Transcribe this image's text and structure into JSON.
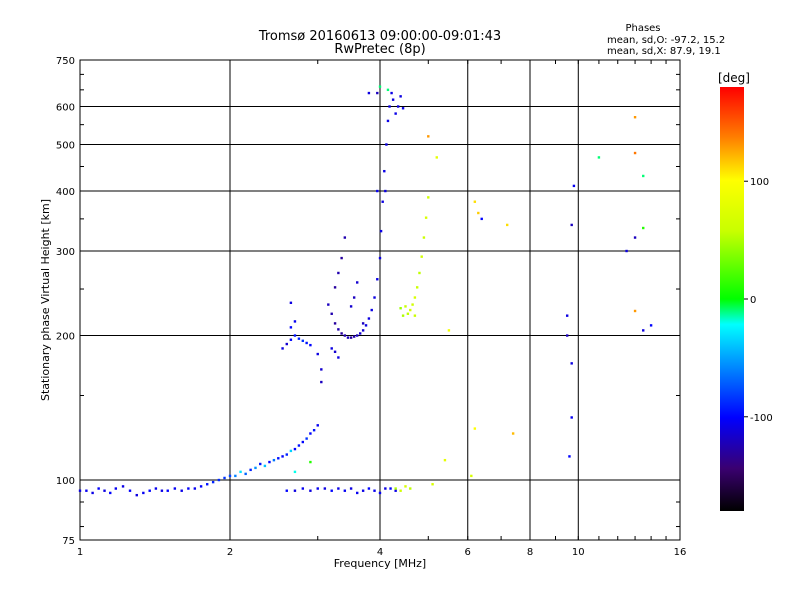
{
  "header": {
    "title": "Tromsø 20160613 09:00:00-09:01:43",
    "subtitle": "RwPretec (8p)"
  },
  "stats": {
    "heading": "Phases",
    "o_line": "mean, sd,O: -97.2, 15.2",
    "x_line": "mean, sd,X:  87.9, 19.1"
  },
  "chart_data": {
    "type": "scatter",
    "xlabel": "Frequency [MHz]",
    "ylabel": "Stationary phase Virtual Height [km]",
    "xscale": "log",
    "yscale": "log",
    "xlim": [
      1,
      16
    ],
    "ylim": [
      75,
      750
    ],
    "xticks": [
      1,
      2,
      4,
      6,
      8,
      10,
      16
    ],
    "yticks": [
      75,
      100,
      200,
      300,
      400,
      500,
      600,
      750
    ],
    "grid": true,
    "colorbar": {
      "label": "[deg]",
      "range": [
        -180,
        180
      ],
      "ticks": [
        100,
        0,
        -100
      ]
    },
    "series": [
      {
        "points": [
          [
            1.0,
            95,
            -110
          ],
          [
            1.03,
            95,
            -105
          ],
          [
            1.06,
            94,
            -108
          ],
          [
            1.09,
            96,
            -102
          ],
          [
            1.12,
            95,
            -110
          ],
          [
            1.15,
            94,
            -100
          ],
          [
            1.18,
            96,
            -105
          ],
          [
            1.22,
            97,
            -108
          ],
          [
            1.26,
            95,
            -102
          ],
          [
            1.3,
            93,
            -110
          ],
          [
            1.34,
            94,
            -104
          ],
          [
            1.38,
            95,
            -100
          ],
          [
            1.42,
            96,
            -106
          ],
          [
            1.46,
            95,
            -108
          ],
          [
            1.5,
            95,
            -101
          ],
          [
            1.55,
            96,
            -104
          ],
          [
            1.6,
            95,
            -107
          ],
          [
            1.65,
            96,
            -102
          ],
          [
            1.7,
            96,
            -105
          ],
          [
            1.75,
            97,
            -100
          ],
          [
            1.8,
            98,
            -95
          ],
          [
            1.85,
            99,
            -90
          ],
          [
            1.9,
            100,
            -88
          ],
          [
            1.95,
            101,
            -85
          ],
          [
            2.0,
            102,
            -80
          ],
          [
            2.05,
            102,
            -60
          ],
          [
            2.1,
            104,
            -30
          ],
          [
            2.15,
            103,
            -70
          ],
          [
            2.2,
            105,
            -90
          ],
          [
            2.25,
            106,
            -55
          ],
          [
            2.3,
            108,
            -95
          ],
          [
            2.35,
            107,
            -40
          ],
          [
            2.4,
            109,
            -100
          ],
          [
            2.45,
            110,
            -65
          ],
          [
            2.5,
            111,
            -95
          ],
          [
            2.55,
            112,
            -100
          ],
          [
            2.6,
            113,
            -90
          ],
          [
            2.65,
            115,
            -35
          ],
          [
            2.7,
            116,
            -100
          ],
          [
            2.75,
            118,
            -95
          ],
          [
            2.8,
            120,
            -100
          ],
          [
            2.85,
            122,
            -85
          ],
          [
            2.9,
            125,
            -100
          ],
          [
            2.95,
            127,
            -95
          ],
          [
            3.0,
            130,
            -105
          ],
          [
            2.9,
            109,
            10
          ],
          [
            2.7,
            104,
            -20
          ],
          [
            2.55,
            188,
            -110
          ],
          [
            2.6,
            192,
            -115
          ],
          [
            2.65,
            196,
            -100
          ],
          [
            2.7,
            200,
            -95
          ],
          [
            2.75,
            197,
            -90
          ],
          [
            2.8,
            195,
            -85
          ],
          [
            2.85,
            193,
            -95
          ],
          [
            2.9,
            191,
            -100
          ],
          [
            2.65,
            208,
            -100
          ],
          [
            2.7,
            214,
            -105
          ],
          [
            2.65,
            234,
            -110
          ],
          [
            3.0,
            183,
            -110
          ],
          [
            3.05,
            170,
            -115
          ],
          [
            3.05,
            160,
            -120
          ],
          [
            3.15,
            232,
            -120
          ],
          [
            3.2,
            222,
            -125
          ],
          [
            3.25,
            212,
            -130
          ],
          [
            3.3,
            206,
            -125
          ],
          [
            3.35,
            202,
            -130
          ],
          [
            3.4,
            200,
            -125
          ],
          [
            3.45,
            198,
            -120
          ],
          [
            3.5,
            198,
            -130
          ],
          [
            3.55,
            199,
            -125
          ],
          [
            3.6,
            200,
            -120
          ],
          [
            3.65,
            202,
            -115
          ],
          [
            3.7,
            205,
            -115
          ],
          [
            3.75,
            210,
            -110
          ],
          [
            3.8,
            217,
            -110
          ],
          [
            3.85,
            226,
            -108
          ],
          [
            3.9,
            240,
            -110
          ],
          [
            3.95,
            262,
            -108
          ],
          [
            4.0,
            290,
            -110
          ],
          [
            4.02,
            330,
            -108
          ],
          [
            4.05,
            380,
            -110
          ],
          [
            4.08,
            440,
            -108
          ],
          [
            4.12,
            500,
            -110
          ],
          [
            4.15,
            560,
            -108
          ],
          [
            4.18,
            600,
            -110
          ],
          [
            4.22,
            640,
            -108
          ],
          [
            4.25,
            620,
            -110
          ],
          [
            4.3,
            580,
            -108
          ],
          [
            4.35,
            600,
            -112
          ],
          [
            4.4,
            630,
            -110
          ],
          [
            4.45,
            595,
            -108
          ],
          [
            3.3,
            270,
            -125
          ],
          [
            3.35,
            290,
            -130
          ],
          [
            3.4,
            320,
            -125
          ],
          [
            3.25,
            252,
            -130
          ],
          [
            3.5,
            230,
            -115
          ],
          [
            3.55,
            240,
            -120
          ],
          [
            3.6,
            258,
            -115
          ],
          [
            3.7,
            212,
            -120
          ],
          [
            3.2,
            188,
            -110
          ],
          [
            3.25,
            185,
            -115
          ],
          [
            3.3,
            180,
            -110
          ],
          [
            3.0,
            96,
            -105
          ],
          [
            3.1,
            96,
            -110
          ],
          [
            3.2,
            95,
            -100
          ],
          [
            3.3,
            96,
            -108
          ],
          [
            3.4,
            95,
            -104
          ],
          [
            3.5,
            96,
            -110
          ],
          [
            3.6,
            94,
            -105
          ],
          [
            3.7,
            95,
            -108
          ],
          [
            3.8,
            96,
            -100
          ],
          [
            3.9,
            95,
            -106
          ],
          [
            4.0,
            94,
            -104
          ],
          [
            4.1,
            96,
            -110
          ],
          [
            4.2,
            96,
            -100
          ],
          [
            4.3,
            95,
            -108
          ],
          [
            2.6,
            95,
            -100
          ],
          [
            2.7,
            95,
            -110
          ],
          [
            2.8,
            96,
            -105
          ],
          [
            2.9,
            95,
            -110
          ],
          [
            3.8,
            640,
            -110
          ],
          [
            3.95,
            400,
            -105
          ],
          [
            4.1,
            400,
            -110
          ],
          [
            3.95,
            640,
            -120
          ],
          [
            4.0,
            660,
            -10
          ],
          [
            4.15,
            650,
            -10
          ],
          [
            4.5,
            230,
            60
          ],
          [
            4.55,
            222,
            55
          ],
          [
            4.6,
            226,
            70
          ],
          [
            4.65,
            232,
            65
          ],
          [
            4.7,
            240,
            70
          ],
          [
            4.75,
            252,
            60
          ],
          [
            4.8,
            270,
            55
          ],
          [
            4.85,
            292,
            65
          ],
          [
            4.9,
            320,
            60
          ],
          [
            4.95,
            352,
            70
          ],
          [
            5.0,
            388,
            65
          ],
          [
            4.4,
            228,
            45
          ],
          [
            4.45,
            220,
            50
          ],
          [
            4.7,
            220,
            60
          ],
          [
            4.3,
            96,
            50
          ],
          [
            4.4,
            95,
            65
          ],
          [
            4.5,
            97,
            70
          ],
          [
            4.6,
            96,
            55
          ],
          [
            5.1,
            98,
            70
          ],
          [
            5.2,
            470,
            80
          ],
          [
            5.4,
            110,
            80
          ],
          [
            5.5,
            205,
            90
          ],
          [
            6.2,
            380,
            110
          ],
          [
            6.3,
            360,
            115
          ],
          [
            6.4,
            350,
            -100
          ],
          [
            6.2,
            128,
            100
          ],
          [
            7.2,
            340,
            110
          ],
          [
            7.4,
            125,
            120
          ],
          [
            5.0,
            520,
            130
          ],
          [
            6.1,
            102,
            70
          ],
          [
            9.5,
            220,
            -110
          ],
          [
            9.5,
            200,
            -120
          ],
          [
            9.8,
            410,
            -105
          ],
          [
            9.7,
            175,
            -110
          ],
          [
            9.6,
            112,
            -100
          ],
          [
            9.7,
            135,
            -105
          ],
          [
            9.7,
            340,
            -120
          ],
          [
            11.0,
            470,
            -10
          ],
          [
            13.0,
            570,
            130
          ],
          [
            13.5,
            430,
            -10
          ],
          [
            12.5,
            300,
            -110
          ],
          [
            13.0,
            225,
            130
          ],
          [
            13.0,
            320,
            -120
          ],
          [
            13.5,
            205,
            -110
          ],
          [
            14.0,
            210,
            -100
          ],
          [
            13.0,
            480,
            140
          ],
          [
            13.5,
            335,
            10
          ]
        ]
      }
    ]
  }
}
